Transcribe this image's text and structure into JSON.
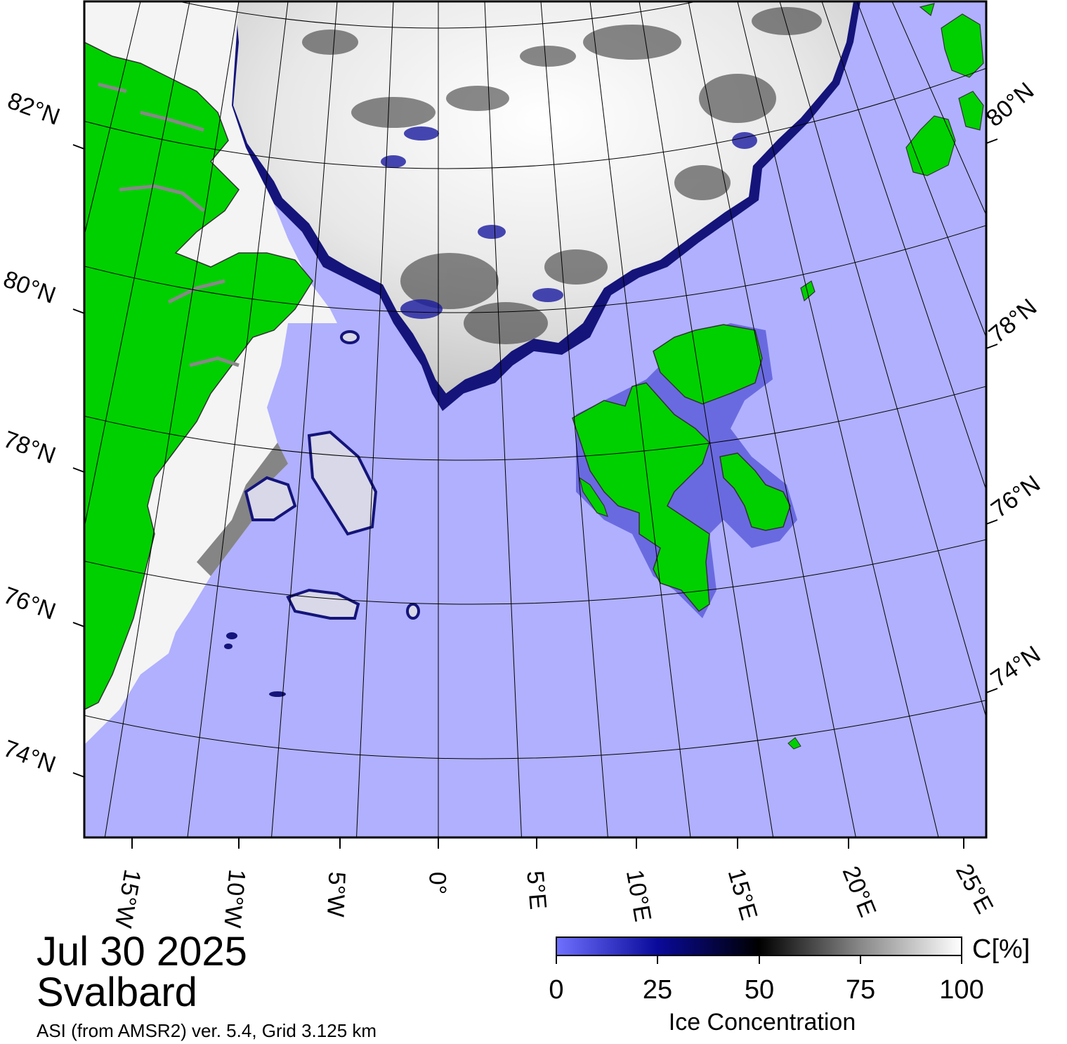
{
  "header": {
    "date": "Jul 30 2025",
    "region": "Svalbard"
  },
  "footer": {
    "source": "ASI (from AMSR2) ver. 5.4,  Grid 3.125 km"
  },
  "colorbar": {
    "unit": "C[%]",
    "title": "Ice Concentration",
    "ticks": [
      "0",
      "25",
      "50",
      "75",
      "100"
    ]
  },
  "map": {
    "longitude_labels": [
      "15°W",
      "10°W",
      "5°W",
      "0°",
      "5°E",
      "10°E",
      "15°E",
      "20°E",
      "25°E"
    ],
    "latitude_labels_left": [
      "82°N",
      "80°N",
      "78°N",
      "76°N",
      "74°N"
    ],
    "latitude_labels_right": [
      "80°N",
      "78°N",
      "76°N",
      "74°N"
    ],
    "colors": {
      "ocean": "#b0b0ff",
      "land": "#00d000",
      "ice": "#ffffff",
      "low_ice": "#0a0a80",
      "coast": "#777777"
    }
  }
}
